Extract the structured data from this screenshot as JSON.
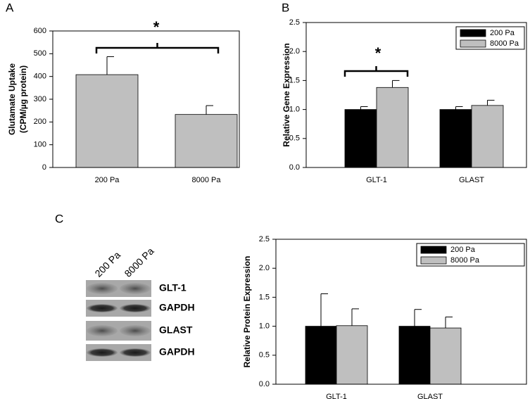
{
  "chart_data": [
    {
      "type": "bar",
      "panel": "A",
      "ylabel": [
        "Glutamate Uptake",
        "(CPM/µg protein)"
      ],
      "categories": [
        "200 Pa",
        "8000 Pa"
      ],
      "values": [
        408,
        233
      ],
      "errors": [
        79,
        39
      ],
      "color": "#bfbfbf",
      "ylim": [
        0,
        600
      ],
      "yticks": [
        0,
        100,
        200,
        300,
        400,
        500,
        600
      ],
      "annotation": "*"
    },
    {
      "type": "bar",
      "panel": "B",
      "ylabel": [
        "Relative Gene Expression"
      ],
      "categories": [
        "GLT-1",
        "GLAST"
      ],
      "series": [
        {
          "name": "200 Pa",
          "color": "#000000",
          "values": [
            1.0,
            1.0
          ],
          "errors": [
            0.05,
            0.05
          ]
        },
        {
          "name": "8000 Pa",
          "color": "#bfbfbf",
          "values": [
            1.38,
            1.07
          ],
          "errors": [
            0.12,
            0.09
          ]
        }
      ],
      "ylim": [
        0,
        2.5
      ],
      "yticks": [
        {
          "value": 0,
          "label": "0.0"
        },
        0.5,
        {
          "value": 1,
          "label": "1.0"
        },
        1.5,
        {
          "value": 2,
          "label": "2.0"
        },
        2.5
      ],
      "legend": "upper right",
      "annotation": "*"
    },
    {
      "type": "bar",
      "ylabel": [
        "Relative Protein Expression"
      ],
      "categories": [
        "GLT-1",
        "GLAST"
      ],
      "series": [
        {
          "name": "200 Pa",
          "color": "#000000",
          "values": [
            1.0,
            1.0
          ],
          "errors": [
            0.56,
            0.29
          ]
        },
        {
          "name": "8000 Pa",
          "color": "#bfbfbf",
          "values": [
            1.01,
            0.97
          ],
          "errors": [
            0.29,
            0.19
          ]
        }
      ],
      "ylim": [
        0,
        2.5
      ],
      "yticks": [
        {
          "value": 0,
          "label": "0.0"
        },
        0.5,
        {
          "value": 1,
          "label": "1.0"
        },
        1.5,
        {
          "value": 2,
          "label": "2.0"
        },
        2.5
      ],
      "legend": "upper right"
    }
  ],
  "blot": {
    "panel": "C",
    "lanes": [
      "200 Pa",
      "8000 Pa"
    ],
    "bands": [
      "GLT-1",
      "GAPDH",
      "GLAST",
      "GAPDH"
    ]
  }
}
